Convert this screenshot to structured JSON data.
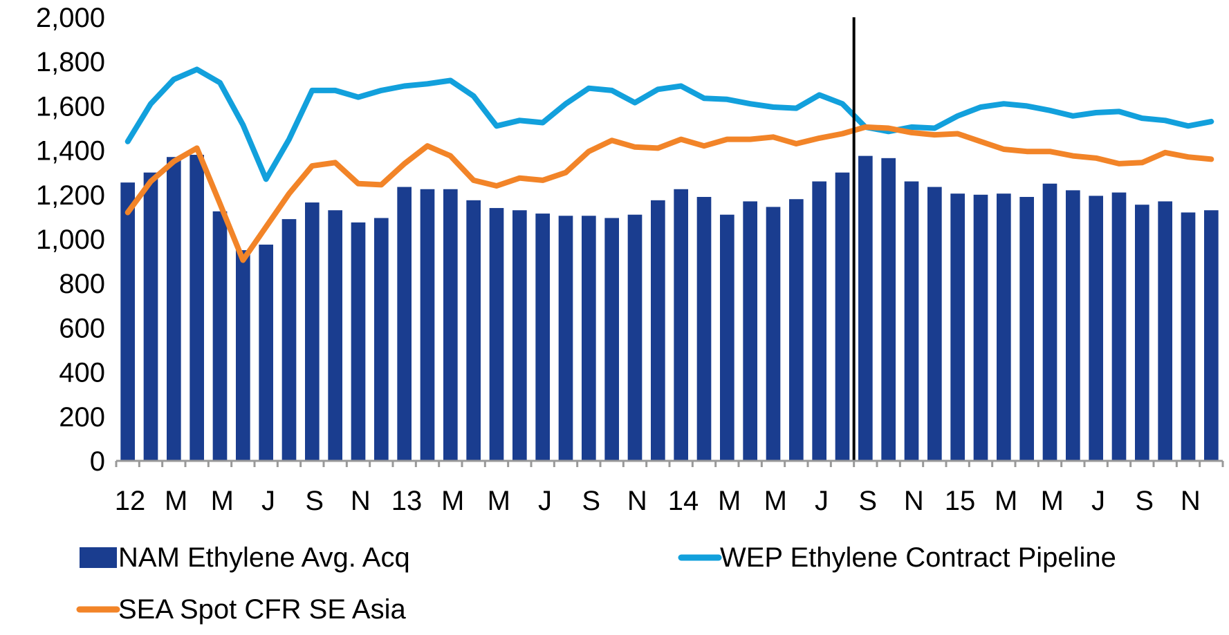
{
  "chart_data": {
    "type": "bar",
    "title": "",
    "xlabel": "",
    "ylabel": "",
    "ylim": [
      0,
      2000
    ],
    "y_ticks": [
      "0",
      "200",
      "400",
      "600",
      "800",
      "1,000",
      "1,200",
      "1,400",
      "1,600",
      "1,800",
      "2,000"
    ],
    "x_tick_labels": [
      "12",
      "M",
      "M",
      "J",
      "S",
      "N",
      "13",
      "M",
      "M",
      "J",
      "S",
      "N",
      "14",
      "M",
      "M",
      "J",
      "S",
      "N",
      "15",
      "M",
      "M",
      "J",
      "S",
      "N"
    ],
    "grid": false,
    "legend_position": "bottom",
    "divider_after_index": 31,
    "series": [
      {
        "name": "NAM Ethylene Avg. Acq",
        "type": "bar",
        "color": "#1a3d8f",
        "values": [
          1255,
          1300,
          1370,
          1380,
          1125,
          950,
          975,
          1090,
          1165,
          1130,
          1075,
          1095,
          1235,
          1225,
          1225,
          1175,
          1140,
          1130,
          1115,
          1105,
          1105,
          1095,
          1110,
          1175,
          1225,
          1190,
          1110,
          1170,
          1145,
          1180,
          1260,
          1300,
          1375,
          1365,
          1260,
          1235,
          1205,
          1200,
          1205,
          1190,
          1250,
          1220,
          1195,
          1210,
          1155,
          1170,
          1120,
          1130
        ]
      },
      {
        "name": "WEP Ethylene Contract Pipeline",
        "type": "line",
        "color": "#12a0dc",
        "values": [
          1440,
          1610,
          1720,
          1765,
          1705,
          1515,
          1270,
          1450,
          1670,
          1670,
          1640,
          1670,
          1690,
          1700,
          1715,
          1645,
          1510,
          1535,
          1525,
          1610,
          1680,
          1670,
          1615,
          1675,
          1690,
          1635,
          1630,
          1610,
          1595,
          1590,
          1650,
          1610,
          1505,
          1485,
          1505,
          1500,
          1555,
          1595,
          1610,
          1600,
          1580,
          1555,
          1570,
          1575,
          1545,
          1535,
          1510,
          1530
        ]
      },
      {
        "name": "SEA Spot CFR SE Asia",
        "type": "line",
        "color": "#f28428",
        "values": [
          1120,
          1260,
          1350,
          1410,
          1160,
          905,
          1055,
          1205,
          1330,
          1345,
          1250,
          1245,
          1340,
          1420,
          1375,
          1265,
          1240,
          1275,
          1265,
          1300,
          1395,
          1445,
          1415,
          1410,
          1450,
          1420,
          1450,
          1450,
          1460,
          1430,
          1455,
          1475,
          1505,
          1500,
          1480,
          1470,
          1475,
          1440,
          1405,
          1395,
          1395,
          1375,
          1365,
          1340,
          1345,
          1390,
          1370,
          1360
        ]
      }
    ]
  }
}
